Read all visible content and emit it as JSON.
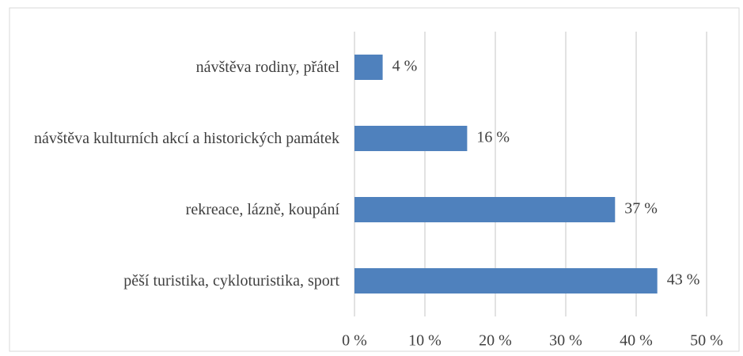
{
  "chart_data": {
    "type": "bar",
    "orientation": "horizontal",
    "categories": [
      "návštěva rodiny, přátel",
      "návštěva kulturních akcí a historických památek",
      "rekreace, lázně, koupání",
      "pěší turistika, cykloturistika, sport"
    ],
    "values": [
      4,
      16,
      37,
      43
    ],
    "value_labels": [
      "4 %",
      "16 %",
      "37 %",
      "43 %"
    ],
    "color": "#4f81bd",
    "xlim": [
      0,
      50
    ],
    "xticks": [
      {
        "value": 0,
        "label": "0 %"
      },
      {
        "value": 10,
        "label": "10 %"
      },
      {
        "value": 20,
        "label": "20 %"
      },
      {
        "value": 30,
        "label": "30 %"
      },
      {
        "value": 40,
        "label": "40 %"
      },
      {
        "value": 50,
        "label": "50 %"
      }
    ],
    "grid": true
  }
}
